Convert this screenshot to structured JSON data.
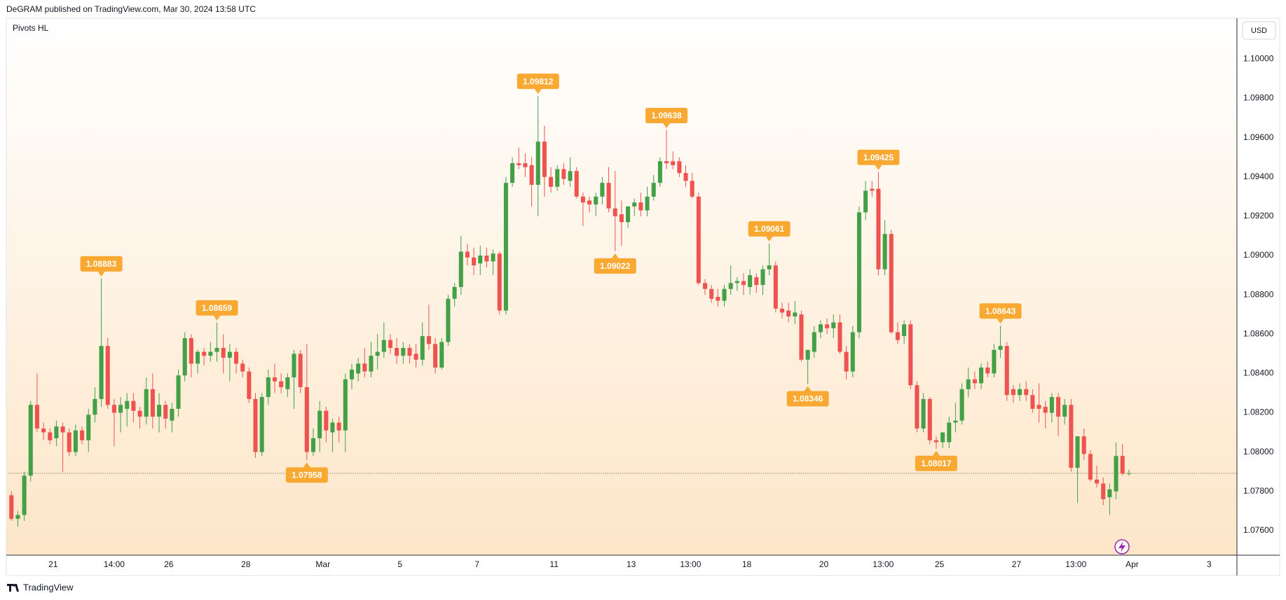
{
  "chart_data": {
    "type": "candlestick",
    "header": "DeGRAM published on TradingView.com, Mar 30, 2024 13:58 UTC",
    "indicator": "Pivots HL",
    "currency": "USD",
    "brand": "TradingView",
    "up_color": "#43a047",
    "down_color": "#ef5350",
    "pivot_color": "#f9a932",
    "grid": false,
    "ylim": [
      1.07475,
      1.10208
    ],
    "yticks": [
      {
        "value": 1.076,
        "label": "1.07600"
      },
      {
        "value": 1.078,
        "label": "1.07800"
      },
      {
        "value": 1.08,
        "label": "1.08000"
      },
      {
        "value": 1.082,
        "label": "1.08200"
      },
      {
        "value": 1.084,
        "label": "1.08400"
      },
      {
        "value": 1.086,
        "label": "1.08600"
      },
      {
        "value": 1.088,
        "label": "1.08800"
      },
      {
        "value": 1.09,
        "label": "1.09000"
      },
      {
        "value": 1.092,
        "label": "1.09200"
      },
      {
        "value": 1.094,
        "label": "1.09400"
      },
      {
        "value": 1.096,
        "label": "1.09600"
      },
      {
        "value": 1.098,
        "label": "1.09800"
      },
      {
        "value": 1.1,
        "label": "1.10000"
      }
    ],
    "xlim": [
      0,
      191.3
    ],
    "xticks": [
      {
        "value": 7,
        "label": "21"
      },
      {
        "value": 16.5,
        "label": "14:00"
      },
      {
        "value": 25,
        "label": "26"
      },
      {
        "value": 37,
        "label": "28"
      },
      {
        "value": 49,
        "label": "Mar"
      },
      {
        "value": 61,
        "label": "5"
      },
      {
        "value": 73,
        "label": "7"
      },
      {
        "value": 85,
        "label": "11"
      },
      {
        "value": 97,
        "label": "13"
      },
      {
        "value": 106.25,
        "label": "13:00"
      },
      {
        "value": 115,
        "label": "18"
      },
      {
        "value": 127,
        "label": "20"
      },
      {
        "value": 136.25,
        "label": "13:00"
      },
      {
        "value": 145,
        "label": "25"
      },
      {
        "value": 157,
        "label": "27"
      },
      {
        "value": 166.25,
        "label": "13:00"
      },
      {
        "value": 175,
        "label": "Apr"
      },
      {
        "value": 187,
        "label": "3"
      }
    ],
    "price_line": 1.07892,
    "ohlc": [
      [
        1.0778,
        1.078,
        1.0765,
        1.0766
      ],
      [
        1.0766,
        1.077,
        1.0762,
        1.0768
      ],
      [
        1.0768,
        1.079,
        1.0765,
        1.0788
      ],
      [
        1.0788,
        1.0826,
        1.0785,
        1.0824
      ],
      [
        1.0824,
        1.084,
        1.081,
        1.0812
      ],
      [
        1.0812,
        1.0815,
        1.0806,
        1.081
      ],
      [
        1.081,
        1.0812,
        1.0804,
        1.0806
      ],
      [
        1.0807,
        1.0816,
        1.0803,
        1.0813
      ],
      [
        1.0813,
        1.0815,
        1.079,
        1.081
      ],
      [
        1.081,
        1.0812,
        1.0798,
        1.08
      ],
      [
        1.08,
        1.0814,
        1.0798,
        1.0811
      ],
      [
        1.0811,
        1.0813,
        1.0804,
        1.0806
      ],
      [
        1.0806,
        1.0822,
        1.08,
        1.0819
      ],
      [
        1.0819,
        1.0833,
        1.0815,
        1.0827
      ],
      [
        1.0827,
        1.08883,
        1.0823,
        1.0854
      ],
      [
        1.0854,
        1.0858,
        1.0822,
        1.0824
      ],
      [
        1.0824,
        1.0827,
        1.0803,
        1.082
      ],
      [
        1.082,
        1.0828,
        1.081,
        1.0824
      ],
      [
        1.0822,
        1.083,
        1.0813,
        1.0826
      ],
      [
        1.0826,
        1.083,
        1.0815,
        1.0821
      ],
      [
        1.0821,
        1.0823,
        1.0812,
        1.0818
      ],
      [
        1.0818,
        1.0838,
        1.0814,
        1.0832
      ],
      [
        1.0832,
        1.084,
        1.0812,
        1.0818
      ],
      [
        1.0818,
        1.083,
        1.081,
        1.0824
      ],
      [
        1.0824,
        1.0826,
        1.0812,
        1.0817
      ],
      [
        1.0816,
        1.0825,
        1.081,
        1.0822
      ],
      [
        1.0822,
        1.0842,
        1.0818,
        1.0839
      ],
      [
        1.0839,
        1.0861,
        1.0836,
        1.0858
      ],
      [
        1.0858,
        1.086,
        1.0838,
        1.0845
      ],
      [
        1.0845,
        1.0852,
        1.084,
        1.0851
      ],
      [
        1.0851,
        1.0853,
        1.0844,
        1.0849
      ],
      [
        1.0849,
        1.0856,
        1.0846,
        1.0851
      ],
      [
        1.0851,
        1.08659,
        1.0846,
        1.0853
      ],
      [
        1.0853,
        1.086,
        1.084,
        1.0848
      ],
      [
        1.0848,
        1.0855,
        1.0836,
        1.0851
      ],
      [
        1.0851,
        1.0853,
        1.084,
        1.0845
      ],
      [
        1.0845,
        1.0847,
        1.0838,
        1.0841
      ],
      [
        1.0841,
        1.0843,
        1.0825,
        1.0827
      ],
      [
        1.0827,
        1.083,
        1.0797,
        1.08
      ],
      [
        1.08,
        1.083,
        1.0798,
        1.0828
      ],
      [
        1.0828,
        1.0842,
        1.0824,
        1.0838
      ],
      [
        1.0838,
        1.0845,
        1.083,
        1.0836
      ],
      [
        1.0836,
        1.084,
        1.083,
        1.0833
      ],
      [
        1.0832,
        1.084,
        1.0828,
        1.0838
      ],
      [
        1.0838,
        1.0852,
        1.0822,
        1.085
      ],
      [
        1.085,
        1.0852,
        1.083,
        1.0833
      ],
      [
        1.0833,
        1.0855,
        1.07958,
        1.08
      ],
      [
        1.08,
        1.0812,
        1.0798,
        1.0807
      ],
      [
        1.0807,
        1.0826,
        1.08,
        1.0821
      ],
      [
        1.0821,
        1.0823,
        1.0805,
        1.0811
      ],
      [
        1.081,
        1.0817,
        1.08,
        1.0815
      ],
      [
        1.0815,
        1.0818,
        1.0805,
        1.0811
      ],
      [
        1.0811,
        1.084,
        1.08,
        1.0837
      ],
      [
        1.0837,
        1.0845,
        1.0832,
        1.0842
      ],
      [
        1.084,
        1.0848,
        1.0836,
        1.0845
      ],
      [
        1.0845,
        1.0853,
        1.0838,
        1.0841
      ],
      [
        1.0841,
        1.0856,
        1.0838,
        1.0849
      ],
      [
        1.0849,
        1.086,
        1.0842,
        1.0851
      ],
      [
        1.0851,
        1.0866,
        1.0848,
        1.0857
      ],
      [
        1.0857,
        1.086,
        1.085,
        1.0853
      ],
      [
        1.0853,
        1.0858,
        1.0845,
        1.0849
      ],
      [
        1.0849,
        1.0856,
        1.0845,
        1.0853
      ],
      [
        1.0853,
        1.0855,
        1.0845,
        1.0849
      ],
      [
        1.085,
        1.0855,
        1.0843,
        1.0847
      ],
      [
        1.0847,
        1.0866,
        1.0844,
        1.0859
      ],
      [
        1.0859,
        1.0875,
        1.0852,
        1.0855
      ],
      [
        1.0855,
        1.0858,
        1.084,
        1.0843
      ],
      [
        1.0843,
        1.0858,
        1.0842,
        1.0856
      ],
      [
        1.0856,
        1.088,
        1.0854,
        1.0878
      ],
      [
        1.0878,
        1.0886,
        1.0874,
        1.0884
      ],
      [
        1.0884,
        1.091,
        1.088,
        1.0902
      ],
      [
        1.0902,
        1.0906,
        1.0895,
        1.0899
      ],
      [
        1.0899,
        1.0904,
        1.089,
        1.0895
      ],
      [
        1.0896,
        1.0905,
        1.089,
        1.09
      ],
      [
        1.09,
        1.0904,
        1.0894,
        1.0897
      ],
      [
        1.0897,
        1.0903,
        1.089,
        1.0901
      ],
      [
        1.0901,
        1.0902,
        1.087,
        1.0872
      ],
      [
        1.0872,
        1.094,
        1.087,
        1.0937
      ],
      [
        1.0937,
        1.095,
        1.0935,
        1.0947
      ],
      [
        1.0947,
        1.0955,
        1.0944,
        1.0946
      ],
      [
        1.0947,
        1.0952,
        1.094,
        1.0945
      ],
      [
        1.0946,
        1.095,
        1.0925,
        1.0936
      ],
      [
        1.0936,
        1.09812,
        1.092,
        1.0958
      ],
      [
        1.0958,
        1.0966,
        1.093,
        1.094
      ],
      [
        1.094,
        1.0945,
        1.0932,
        1.0935
      ],
      [
        1.0935,
        1.0946,
        1.0933,
        1.0944
      ],
      [
        1.0944,
        1.0947,
        1.0936,
        1.0939
      ],
      [
        1.0938,
        1.095,
        1.0935,
        1.0943
      ],
      [
        1.0943,
        1.0945,
        1.0929,
        1.093
      ],
      [
        1.093,
        1.0932,
        1.0915,
        1.0927
      ],
      [
        1.0928,
        1.093,
        1.0922,
        1.0926
      ],
      [
        1.0926,
        1.0932,
        1.092,
        1.093
      ],
      [
        1.093,
        1.094,
        1.0926,
        1.0937
      ],
      [
        1.0937,
        1.0945,
        1.0922,
        1.0924
      ],
      [
        1.0924,
        1.0943,
        1.09022,
        1.092
      ],
      [
        1.0921,
        1.0928,
        1.0905,
        1.0917
      ],
      [
        1.0917,
        1.0925,
        1.0914,
        1.0925
      ],
      [
        1.0925,
        1.0929,
        1.092,
        1.0927
      ],
      [
        1.0927,
        1.0932,
        1.092,
        1.0923
      ],
      [
        1.0923,
        1.0935,
        1.092,
        1.093
      ],
      [
        1.093,
        1.0941,
        1.0928,
        1.0937
      ],
      [
        1.0937,
        1.095,
        1.0935,
        1.0948
      ],
      [
        1.0948,
        1.09638,
        1.0944,
        1.0947
      ],
      [
        1.0948,
        1.0953,
        1.0944,
        1.0946
      ],
      [
        1.0948,
        1.095,
        1.094,
        1.0942
      ],
      [
        1.0942,
        1.0946,
        1.0935,
        1.0938
      ],
      [
        1.0938,
        1.0942,
        1.0929,
        1.093
      ],
      [
        1.093,
        1.0932,
        1.0885,
        1.0886
      ],
      [
        1.0886,
        1.0888,
        1.088,
        1.0883
      ],
      [
        1.0883,
        1.0885,
        1.0876,
        1.0878
      ],
      [
        1.0879,
        1.0883,
        1.0874,
        1.0877
      ],
      [
        1.0877,
        1.0885,
        1.0874,
        1.0883
      ],
      [
        1.0883,
        1.0895,
        1.088,
        1.0886
      ],
      [
        1.0886,
        1.0889,
        1.0882,
        1.0887
      ],
      [
        1.0887,
        1.0891,
        1.088,
        1.0885
      ],
      [
        1.0884,
        1.0893,
        1.088,
        1.089
      ],
      [
        1.0889,
        1.0891,
        1.0881,
        1.0885
      ],
      [
        1.0885,
        1.0895,
        1.088,
        1.0893
      ],
      [
        1.0893,
        1.09061,
        1.089,
        1.0895
      ],
      [
        1.0895,
        1.0897,
        1.0871,
        1.0873
      ],
      [
        1.0873,
        1.0876,
        1.0868,
        1.0871
      ],
      [
        1.0872,
        1.0876,
        1.0866,
        1.0869
      ],
      [
        1.0869,
        1.0877,
        1.0865,
        1.0871
      ],
      [
        1.087,
        1.0872,
        1.0846,
        1.0847
      ],
      [
        1.0847,
        1.0851,
        1.08346,
        1.0852
      ],
      [
        1.0851,
        1.0864,
        1.0848,
        1.0861
      ],
      [
        1.0861,
        1.0867,
        1.0858,
        1.0865
      ],
      [
        1.0865,
        1.0868,
        1.086,
        1.0863
      ],
      [
        1.0863,
        1.087,
        1.0858,
        1.0866
      ],
      [
        1.0866,
        1.087,
        1.085,
        1.0851
      ],
      [
        1.0851,
        1.0854,
        1.0837,
        1.0841
      ],
      [
        1.0841,
        1.0864,
        1.0838,
        1.0861
      ],
      [
        1.0861,
        1.0925,
        1.0858,
        1.0922
      ],
      [
        1.0922,
        1.0938,
        1.0918,
        1.0933
      ],
      [
        1.0934,
        1.0938,
        1.093,
        1.0933
      ],
      [
        1.0934,
        1.09425,
        1.089,
        1.0893
      ],
      [
        1.0893,
        1.0918,
        1.089,
        1.0911
      ],
      [
        1.0911,
        1.0913,
        1.086,
        1.0861
      ],
      [
        1.0861,
        1.0866,
        1.0855,
        1.0857
      ],
      [
        1.0859,
        1.0867,
        1.0855,
        1.0865
      ],
      [
        1.0865,
        1.0867,
        1.0832,
        1.0834
      ],
      [
        1.0834,
        1.0836,
        1.081,
        1.0812
      ],
      [
        1.0812,
        1.083,
        1.081,
        1.0827
      ],
      [
        1.0827,
        1.0828,
        1.0804,
        1.0806
      ],
      [
        1.0806,
        1.0808,
        1.08017,
        1.0805
      ],
      [
        1.0805,
        1.081,
        1.0802,
        1.081
      ],
      [
        1.0805,
        1.0818,
        1.0802,
        1.0815
      ],
      [
        1.0815,
        1.0825,
        1.081,
        1.0816
      ],
      [
        1.0816,
        1.0835,
        1.0814,
        1.0832
      ],
      [
        1.0832,
        1.0843,
        1.0828,
        1.0837
      ],
      [
        1.0837,
        1.0841,
        1.0832,
        1.0835
      ],
      [
        1.0835,
        1.0845,
        1.0832,
        1.0843
      ],
      [
        1.0843,
        1.0846,
        1.0838,
        1.084
      ],
      [
        1.084,
        1.0855,
        1.0838,
        1.0852
      ],
      [
        1.0852,
        1.08643,
        1.0848,
        1.0854
      ],
      [
        1.0854,
        1.0856,
        1.0826,
        1.0829
      ],
      [
        1.0832,
        1.0834,
        1.0825,
        1.0829
      ],
      [
        1.0829,
        1.0835,
        1.0826,
        1.0832
      ],
      [
        1.0832,
        1.0836,
        1.0826,
        1.0829
      ],
      [
        1.0829,
        1.0832,
        1.082,
        1.0822
      ],
      [
        1.0824,
        1.0835,
        1.0815,
        1.0822
      ],
      [
        1.0823,
        1.0826,
        1.0812,
        1.082
      ],
      [
        1.082,
        1.083,
        1.0815,
        1.0828
      ],
      [
        1.0828,
        1.083,
        1.0808,
        1.0818
      ],
      [
        1.0818,
        1.0827,
        1.0814,
        1.0824
      ],
      [
        1.0824,
        1.0827,
        1.079,
        1.0792
      ],
      [
        1.0792,
        1.0808,
        1.0774,
        1.0808
      ],
      [
        1.0808,
        1.0812,
        1.0796,
        1.0799
      ],
      [
        1.0799,
        1.0801,
        1.0785,
        1.0786
      ],
      [
        1.0786,
        1.0793,
        1.0782,
        1.0784
      ],
      [
        1.0784,
        1.0787,
        1.0773,
        1.0776
      ],
      [
        1.0777,
        1.0784,
        1.0768,
        1.0781
      ],
      [
        1.078,
        1.0805,
        1.0776,
        1.0798
      ],
      [
        1.0798,
        1.0804,
        1.0788,
        1.0789
      ],
      [
        1.0789,
        1.0791,
        1.0788,
        1.07892
      ]
    ],
    "pivots": {
      "x": [
        14,
        32,
        46,
        82,
        94,
        102,
        118,
        124,
        135,
        144,
        154
      ],
      "values": [
        1.08883,
        1.08659,
        1.07958,
        1.09812,
        1.09022,
        1.09638,
        1.09061,
        1.08346,
        1.09425,
        1.08017,
        1.08643
      ],
      "side": [
        "high",
        "high",
        "low",
        "high",
        "low",
        "high",
        "high",
        "low",
        "high",
        "low",
        "high"
      ]
    }
  }
}
